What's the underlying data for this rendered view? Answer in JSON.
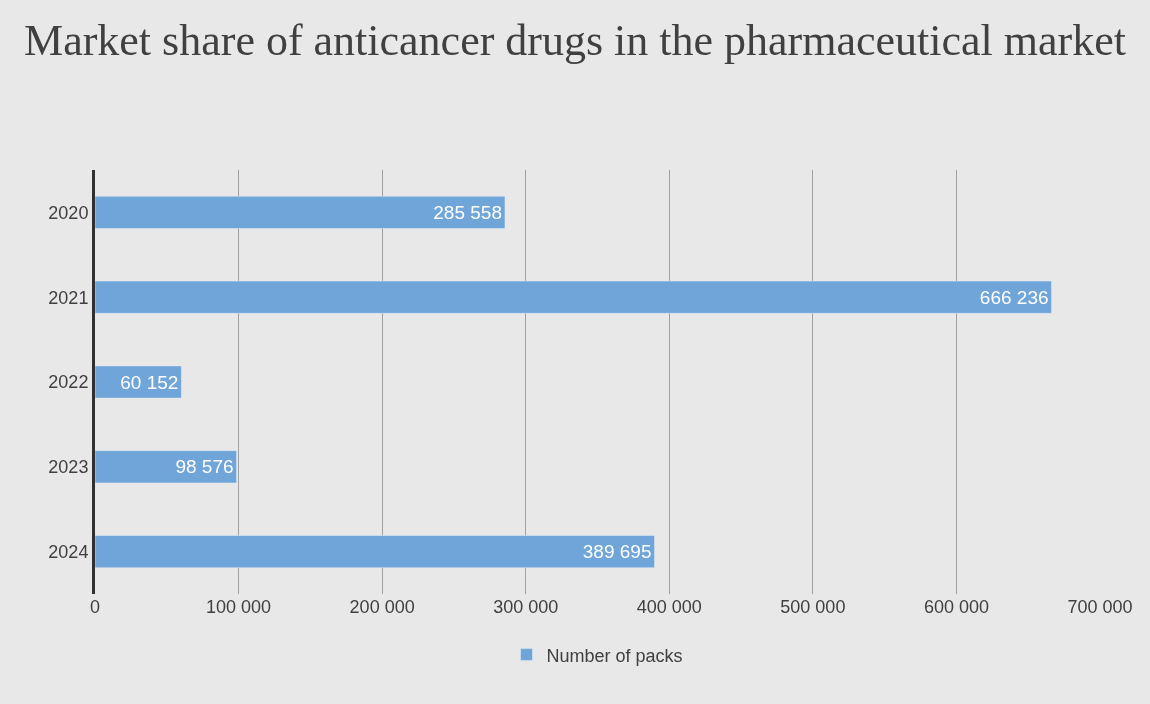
{
  "chart_data": {
    "type": "bar",
    "orientation": "horizontal",
    "title": "Market share of anticancer drugs in the pharmaceutical market",
    "categories": [
      "2020",
      "2021",
      "2022",
      "2023",
      "2024"
    ],
    "series": [
      {
        "name": "Number of packs",
        "color": "#6fa5d8",
        "values": [
          285558,
          666236,
          60152,
          98576,
          389695
        ],
        "value_labels": [
          "285 558",
          "666 236",
          "60 152",
          "98 576",
          "389 695"
        ]
      }
    ],
    "xlim": [
      0,
      700000
    ],
    "xticks": [
      0,
      {
        "value": 100000,
        "label": "100 000"
      },
      {
        "value": 200000,
        "label": "200 000"
      },
      {
        "value": 300000,
        "label": "300 000"
      },
      {
        "value": 400000,
        "label": "400 000"
      },
      {
        "value": 500000,
        "label": "500 000"
      },
      {
        "value": 600000,
        "label": "600 000"
      },
      {
        "value": 700000,
        "label": "700 000"
      }
    ],
    "grid": "x",
    "legend": "bottom"
  }
}
